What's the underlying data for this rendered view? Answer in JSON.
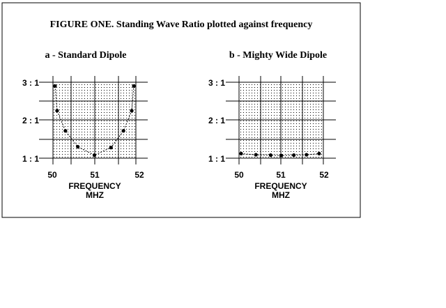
{
  "figure_title": "FIGURE ONE. Standing Wave Ratio plotted against frequency",
  "chart_data": [
    {
      "type": "line",
      "title": "a - Standard Dipole",
      "xlabel_line1": "FREQUENCY",
      "xlabel_line2": "MHZ",
      "ylabel": "",
      "xticks": [
        "50",
        "51",
        "52"
      ],
      "yticks": [
        "1 : 1",
        "2 : 1",
        "3 : 1"
      ],
      "xlim": [
        50,
        52
      ],
      "ylim": [
        1,
        3
      ],
      "grid": true,
      "x": [
        50.05,
        50.1,
        50.3,
        50.6,
        51.0,
        51.4,
        51.7,
        51.9,
        51.95
      ],
      "y": [
        2.9,
        2.25,
        1.72,
        1.3,
        1.08,
        1.28,
        1.72,
        2.25,
        2.9
      ]
    },
    {
      "type": "line",
      "title": "b - Mighty Wide Dipole",
      "xlabel_line1": "FREQUENCY",
      "xlabel_line2": "MHZ",
      "ylabel": "",
      "xticks": [
        "50",
        "51",
        "52"
      ],
      "yticks": [
        "1 : 1",
        "2 : 1",
        "3 : 1"
      ],
      "xlim": [
        50,
        52
      ],
      "ylim": [
        1,
        3
      ],
      "grid": true,
      "x": [
        50.05,
        50.4,
        50.75,
        51.0,
        51.3,
        51.6,
        51.9
      ],
      "y": [
        1.12,
        1.09,
        1.08,
        1.07,
        1.08,
        1.09,
        1.12
      ]
    }
  ]
}
